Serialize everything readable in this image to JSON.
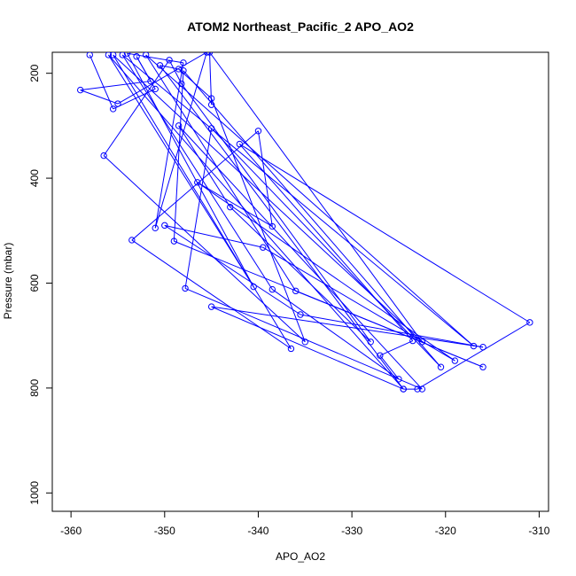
{
  "chart_data": {
    "type": "line",
    "title": "ATOM2 Northeast_Pacific_2 APO_AO2",
    "xlabel": "APO_AO2",
    "ylabel": "Pressure (mbar)",
    "xlim": [
      -362,
      -309
    ],
    "ylim": [
      1035,
      160
    ],
    "y_reversed": true,
    "x_ticks": [
      -360,
      -350,
      -340,
      -330,
      -320,
      -310
    ],
    "y_ticks": [
      200,
      400,
      600,
      800,
      1000
    ],
    "grid": false,
    "series_color": "#0000ff",
    "marker": "open-circle",
    "series": [
      {
        "x": [
          -358,
          -355.5,
          -351,
          -353,
          -351.5,
          -359,
          -355,
          -345.5,
          -351,
          -348,
          -354,
          -340.5,
          -356,
          -324.5,
          -350.5,
          -348.5,
          -345,
          -335,
          -356.5,
          -349.5,
          -348.2,
          -328,
          -343,
          -348.5,
          -322.5,
          -347.8,
          -345,
          -320.5,
          -348,
          -349,
          -316,
          -336,
          -352,
          -317,
          -354.5,
          -338.5,
          -325,
          -327,
          -323.5,
          -342,
          -311,
          -323,
          -324.5,
          -345,
          -316,
          -335.5,
          -350,
          -339.5,
          -319,
          -346.5,
          -338.5,
          -340,
          -353.5,
          -336.5,
          -355.5,
          -322.5,
          -345.2,
          -345
        ],
        "y": [
          165,
          268,
          230,
          168,
          215,
          232,
          258,
          160,
          495,
          180,
          162,
          607,
          165,
          802,
          185,
          192,
          248,
          712,
          357,
          175,
          220,
          712,
          455,
          300,
          802,
          610,
          305,
          760,
          195,
          520,
          760,
          615,
          165,
          720,
          165,
          612,
          783,
          738,
          710,
          335,
          675,
          802,
          802,
          645,
          722,
          660,
          490,
          532,
          748,
          408,
          492,
          310,
          518,
          725,
          165,
          712,
          160,
          260
        ]
      }
    ]
  }
}
